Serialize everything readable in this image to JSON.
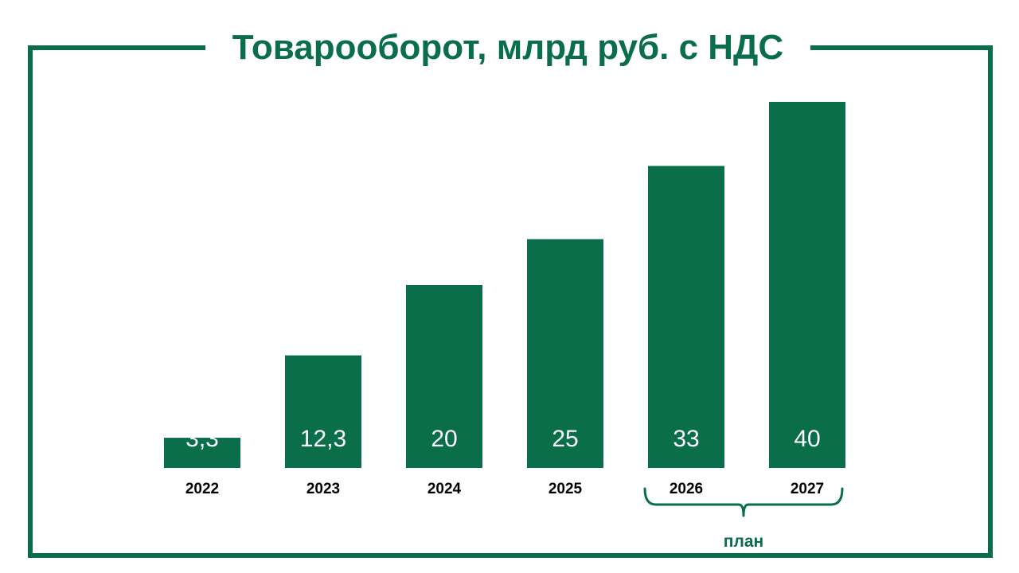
{
  "colors": {
    "accent": "#0a6e4a",
    "background": "#ffffff"
  },
  "chart_data": {
    "type": "bar",
    "title": "Товарооборот, млрд руб. с НДС",
    "categories": [
      "2022",
      "2023",
      "2024",
      "2025",
      "2026",
      "2027"
    ],
    "values": [
      3.3,
      12.3,
      20,
      25,
      33,
      40
    ],
    "value_labels": [
      "3,3",
      "12,3",
      "20",
      "25",
      "33",
      "40"
    ],
    "annotation": {
      "text": "план",
      "covers": [
        "2026",
        "2027"
      ]
    },
    "grid": false,
    "legend": "none"
  }
}
